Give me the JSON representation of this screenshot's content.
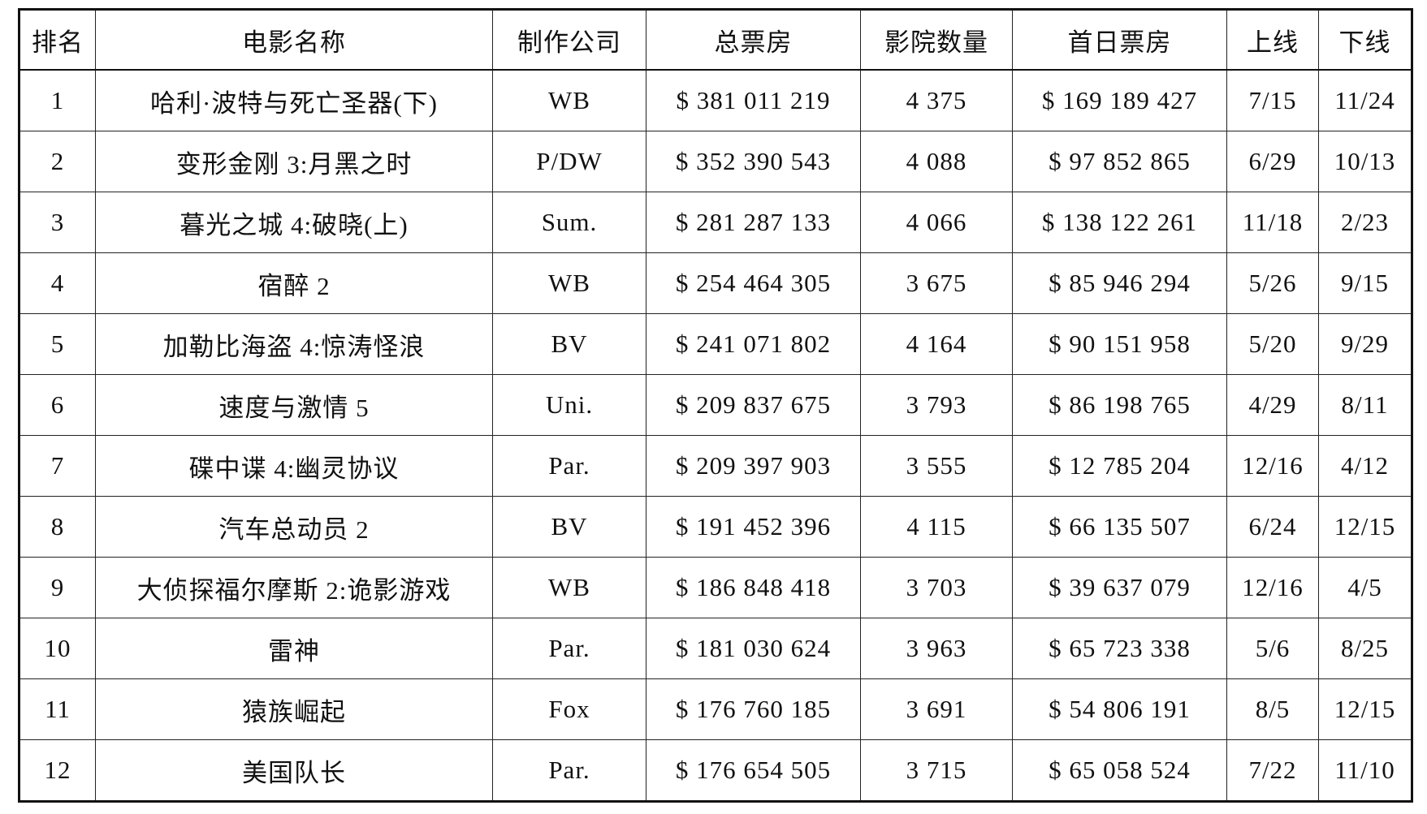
{
  "table": {
    "headers": [
      "排名",
      "电影名称",
      "制作公司",
      "总票房",
      "影院数量",
      "首日票房",
      "上线",
      "下线"
    ],
    "rows": [
      [
        "1",
        "哈利·波特与死亡圣器(下)",
        "WB",
        "$ 381 011 219",
        "4 375",
        "$ 169 189 427",
        "7/15",
        "11/24"
      ],
      [
        "2",
        "变形金刚 3:月黑之时",
        "P/DW",
        "$ 352 390 543",
        "4 088",
        "$ 97 852 865",
        "6/29",
        "10/13"
      ],
      [
        "3",
        "暮光之城 4:破晓(上)",
        "Sum.",
        "$ 281 287 133",
        "4 066",
        "$ 138 122 261",
        "11/18",
        "2/23"
      ],
      [
        "4",
        "宿醉 2",
        "WB",
        "$ 254 464 305",
        "3 675",
        "$ 85 946 294",
        "5/26",
        "9/15"
      ],
      [
        "5",
        "加勒比海盗 4:惊涛怪浪",
        "BV",
        "$ 241 071 802",
        "4 164",
        "$ 90 151 958",
        "5/20",
        "9/29"
      ],
      [
        "6",
        "速度与激情 5",
        "Uni.",
        "$ 209 837 675",
        "3 793",
        "$ 86 198 765",
        "4/29",
        "8/11"
      ],
      [
        "7",
        "碟中谍 4:幽灵协议",
        "Par.",
        "$ 209 397 903",
        "3 555",
        "$ 12 785 204",
        "12/16",
        "4/12"
      ],
      [
        "8",
        "汽车总动员 2",
        "BV",
        "$ 191 452 396",
        "4 115",
        "$ 66 135 507",
        "6/24",
        "12/15"
      ],
      [
        "9",
        "大侦探福尔摩斯 2:诡影游戏",
        "WB",
        "$ 186 848 418",
        "3 703",
        "$ 39 637 079",
        "12/16",
        "4/5"
      ],
      [
        "10",
        "雷神",
        "Par.",
        "$ 181 030 624",
        "3 963",
        "$ 65 723 338",
        "5/6",
        "8/25"
      ],
      [
        "11",
        "猿族崛起",
        "Fox",
        "$ 176 760 185",
        "3 691",
        "$ 54 806 191",
        "8/5",
        "12/15"
      ],
      [
        "12",
        "美国队长",
        "Par.",
        "$ 176 654 505",
        "3 715",
        "$ 65 058 524",
        "7/22",
        "11/10"
      ]
    ]
  }
}
